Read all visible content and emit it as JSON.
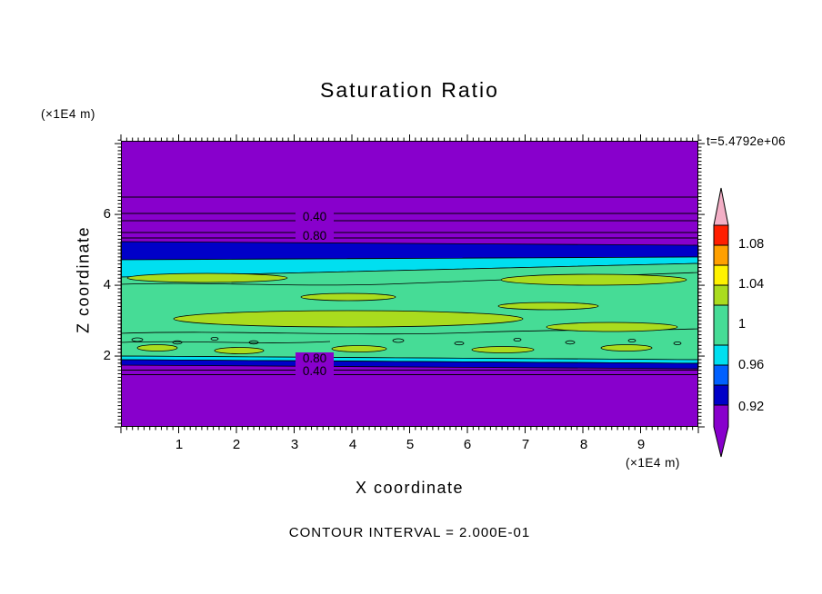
{
  "chart_data": {
    "type": "heatmap",
    "subtype": "filled-contour-plot",
    "title": "Saturation Ratio",
    "time_label": "t=5.4792e+06",
    "contour_interval_note": "CONTOUR INTERVAL = 2.000E-01",
    "x_axis": {
      "label": "X coordinate",
      "unit": "(×1E4 m)",
      "range": [
        0,
        10
      ],
      "minor_step": 0.1,
      "ticks": [
        "1",
        "2",
        "3",
        "4",
        "5",
        "6",
        "7",
        "8",
        "9"
      ]
    },
    "z_axis": {
      "label": "Z coordinate",
      "unit": "(×1E4 m)",
      "range": [
        0,
        8.08
      ],
      "minor_step": 0.1,
      "ticks": [
        "6",
        "4",
        "2"
      ]
    },
    "contour_labels": {
      "top_040": "0.40",
      "top_080": "0.80",
      "bottom_080": "0.80",
      "bottom_040": "0.40"
    },
    "colorbar": {
      "labels": [
        "1.08",
        "1.04",
        "1",
        "0.96",
        "0.92"
      ],
      "segments_top_to_bottom": [
        {
          "name": "above-1.10-arrow",
          "color": "#F3AFC6"
        },
        {
          "name": "1.08-1.10",
          "color": "#FF1E00"
        },
        {
          "name": "1.06-1.08",
          "color": "#FFA000"
        },
        {
          "name": "1.04-1.06",
          "color": "#FFF200"
        },
        {
          "name": "1.02-1.04",
          "color": "#AADC1E"
        },
        {
          "name": "0.98-1.02",
          "color": "#46DC96"
        },
        {
          "name": "0.96-0.98",
          "color": "#00DFF0"
        },
        {
          "name": "0.94-0.96",
          "color": "#0060FF"
        },
        {
          "name": "0.92-0.94",
          "color": "#0000C8"
        },
        {
          "name": "below-0.92-arrow",
          "color": "#8800CC"
        }
      ]
    },
    "field_colors": {
      "background_purple": "#8800CC",
      "dark_blue": "#0000C8",
      "cyan": "#00DFF0",
      "green": "#46DC96",
      "yellow_green": "#AADC1E"
    },
    "field_regions_top_to_bottom": [
      {
        "color_name": "purple",
        "z_range_approx": [
          5.4,
          8.08
        ],
        "note": "low saturation, contour lines 0.40 and 0.80 near z=5.5-6.2"
      },
      {
        "color_name": "dark-blue",
        "z_range_approx": [
          4.8,
          5.4
        ]
      },
      {
        "color_name": "cyan",
        "z_range_approx": [
          4.6,
          4.8
        ]
      },
      {
        "color_name": "green",
        "z_range_approx": [
          2.0,
          4.6
        ],
        "note": "saturation near 1 with elongated yellow-green patches around 1.02-1.04"
      },
      {
        "color_name": "cyan-and-dark-blue-thin-bands",
        "z_range_approx": [
          1.8,
          2.0
        ],
        "note": "contour labels 0.80 and 0.40 just below"
      },
      {
        "color_name": "purple",
        "z_range_approx": [
          0,
          1.8
        ]
      }
    ]
  }
}
